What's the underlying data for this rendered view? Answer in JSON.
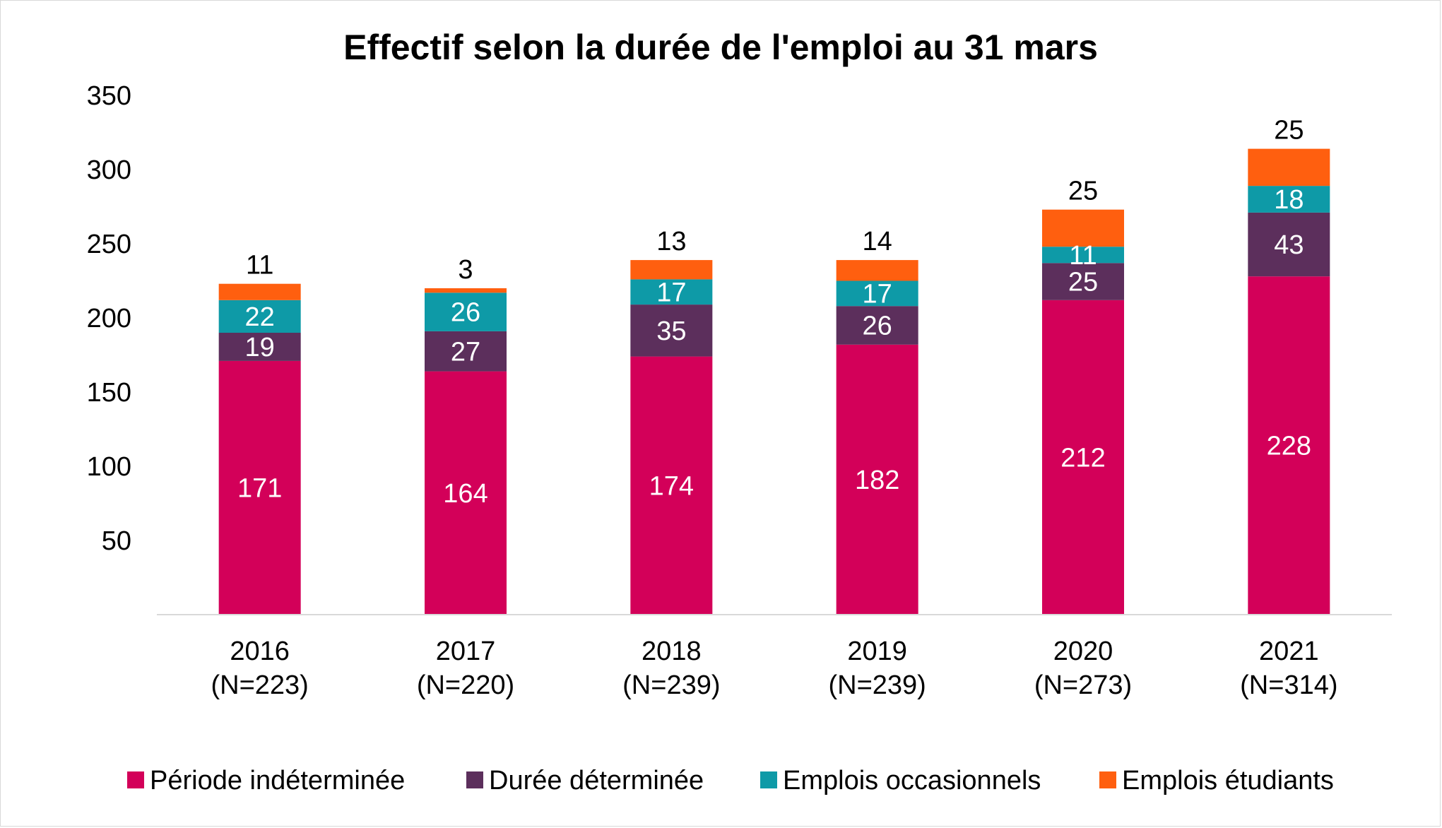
{
  "chart_data": {
    "type": "bar",
    "stacked": true,
    "title": "Effectif selon la durée de l'emploi au 31 mars",
    "categories": [
      "2016",
      "2017",
      "2018",
      "2019",
      "2020",
      "2021"
    ],
    "category_sublabels": [
      "(N=223)",
      "(N=220)",
      "(N=239)",
      "(N=239)",
      "(N=273)",
      "(N=314)"
    ],
    "ylim": [
      0,
      350
    ],
    "yticks": [
      50,
      100,
      150,
      200,
      250,
      300,
      350
    ],
    "grid": false,
    "legend_position": "bottom",
    "series": [
      {
        "name": "Période indéterminée",
        "color": "#D30059",
        "label_color": "#ffffff",
        "values": [
          171,
          164,
          174,
          182,
          212,
          228
        ]
      },
      {
        "name": "Durée déterminée",
        "color": "#5C2F5C",
        "label_color": "#ffffff",
        "values": [
          19,
          27,
          35,
          26,
          25,
          43
        ]
      },
      {
        "name": "Emplois occasionnels",
        "color": "#0E9AA7",
        "label_color": "#ffffff",
        "values": [
          22,
          26,
          17,
          17,
          11,
          18
        ]
      },
      {
        "name": "Emplois étudiants",
        "color": "#FF5F0F",
        "label_color": "#000000",
        "values": [
          11,
          3,
          13,
          14,
          25,
          25
        ]
      }
    ]
  }
}
